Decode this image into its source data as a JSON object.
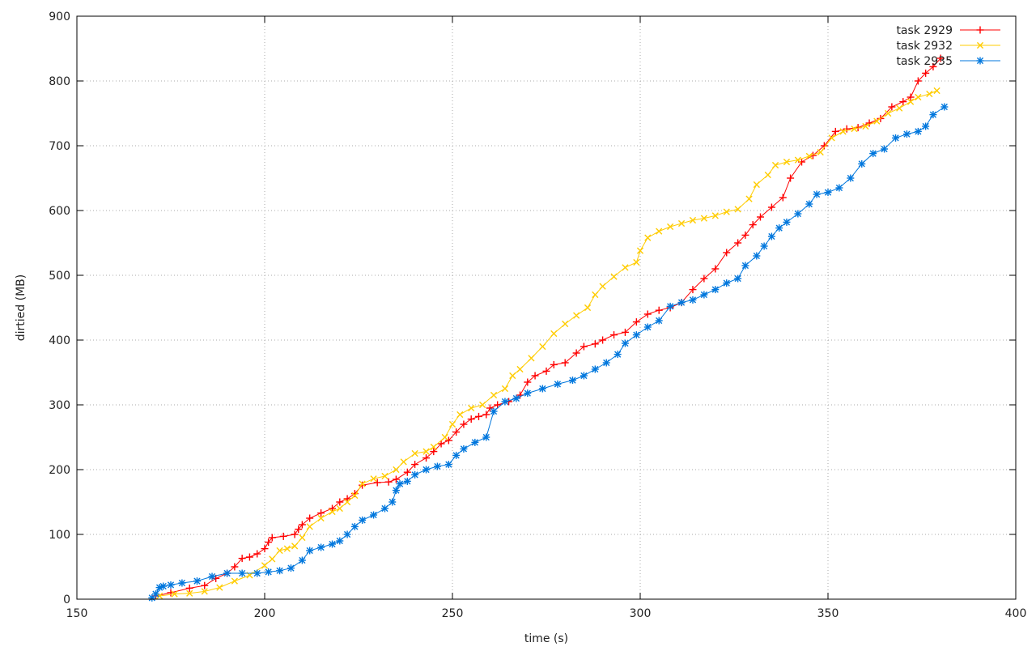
{
  "chart_data": {
    "type": "line",
    "title": "",
    "xlabel": "time (s)",
    "ylabel": "dirtied (MB)",
    "xlim": [
      150,
      400
    ],
    "ylim": [
      0,
      900
    ],
    "xticks": [
      150,
      200,
      250,
      300,
      350,
      400
    ],
    "yticks": [
      0,
      100,
      200,
      300,
      400,
      500,
      600,
      700,
      800,
      900
    ],
    "grid": true,
    "legend_position": "top-right",
    "series": [
      {
        "name": "task 2929",
        "color": "#ff0000",
        "marker": "plus",
        "points": [
          [
            171,
            5
          ],
          [
            175,
            10
          ],
          [
            180,
            17
          ],
          [
            184,
            21
          ],
          [
            187,
            32
          ],
          [
            190,
            40
          ],
          [
            192,
            50
          ],
          [
            194,
            63
          ],
          [
            196,
            65
          ],
          [
            198,
            70
          ],
          [
            200,
            78
          ],
          [
            201,
            88
          ],
          [
            202,
            95
          ],
          [
            205,
            97
          ],
          [
            208,
            100
          ],
          [
            209,
            108
          ],
          [
            210,
            115
          ],
          [
            212,
            125
          ],
          [
            215,
            133
          ],
          [
            218,
            140
          ],
          [
            220,
            150
          ],
          [
            222,
            155
          ],
          [
            224,
            163
          ],
          [
            226,
            176
          ],
          [
            230,
            180
          ],
          [
            233,
            181
          ],
          [
            235,
            185
          ],
          [
            238,
            196
          ],
          [
            240,
            208
          ],
          [
            243,
            218
          ],
          [
            245,
            228
          ],
          [
            247,
            240
          ],
          [
            249,
            245
          ],
          [
            251,
            258
          ],
          [
            253,
            270
          ],
          [
            255,
            278
          ],
          [
            257,
            282
          ],
          [
            259,
            285
          ],
          [
            260,
            295
          ],
          [
            262,
            300
          ],
          [
            265,
            305
          ],
          [
            268,
            315
          ],
          [
            270,
            335
          ],
          [
            272,
            345
          ],
          [
            275,
            352
          ],
          [
            277,
            362
          ],
          [
            280,
            365
          ],
          [
            283,
            380
          ],
          [
            285,
            390
          ],
          [
            288,
            394
          ],
          [
            290,
            400
          ],
          [
            293,
            408
          ],
          [
            296,
            412
          ],
          [
            299,
            428
          ],
          [
            302,
            440
          ],
          [
            305,
            446
          ],
          [
            308,
            450
          ],
          [
            311,
            458
          ],
          [
            314,
            478
          ],
          [
            317,
            495
          ],
          [
            320,
            510
          ],
          [
            323,
            535
          ],
          [
            326,
            550
          ],
          [
            328,
            562
          ],
          [
            330,
            578
          ],
          [
            332,
            590
          ],
          [
            335,
            605
          ],
          [
            338,
            620
          ],
          [
            340,
            650
          ],
          [
            343,
            675
          ],
          [
            346,
            685
          ],
          [
            349,
            700
          ],
          [
            352,
            722
          ],
          [
            355,
            726
          ],
          [
            358,
            728
          ],
          [
            361,
            735
          ],
          [
            364,
            742
          ],
          [
            367,
            760
          ],
          [
            370,
            768
          ],
          [
            372,
            775
          ],
          [
            374,
            800
          ],
          [
            376,
            812
          ],
          [
            378,
            822
          ],
          [
            380,
            835
          ]
        ]
      },
      {
        "name": "task 2932",
        "color": "#ffcc00",
        "marker": "x",
        "points": [
          [
            172,
            5
          ],
          [
            176,
            8
          ],
          [
            180,
            9
          ],
          [
            184,
            12
          ],
          [
            188,
            18
          ],
          [
            192,
            28
          ],
          [
            196,
            37
          ],
          [
            200,
            52
          ],
          [
            202,
            62
          ],
          [
            204,
            75
          ],
          [
            206,
            78
          ],
          [
            208,
            82
          ],
          [
            210,
            95
          ],
          [
            212,
            112
          ],
          [
            215,
            125
          ],
          [
            218,
            135
          ],
          [
            220,
            140
          ],
          [
            222,
            150
          ],
          [
            224,
            160
          ],
          [
            226,
            178
          ],
          [
            229,
            186
          ],
          [
            232,
            190
          ],
          [
            235,
            200
          ],
          [
            237,
            212
          ],
          [
            240,
            225
          ],
          [
            243,
            228
          ],
          [
            245,
            235
          ],
          [
            248,
            250
          ],
          [
            250,
            270
          ],
          [
            252,
            285
          ],
          [
            255,
            295
          ],
          [
            258,
            300
          ],
          [
            261,
            315
          ],
          [
            264,
            325
          ],
          [
            266,
            345
          ],
          [
            268,
            355
          ],
          [
            271,
            372
          ],
          [
            274,
            390
          ],
          [
            277,
            410
          ],
          [
            280,
            425
          ],
          [
            283,
            438
          ],
          [
            286,
            450
          ],
          [
            288,
            470
          ],
          [
            290,
            483
          ],
          [
            293,
            498
          ],
          [
            296,
            512
          ],
          [
            299,
            520
          ],
          [
            300,
            538
          ],
          [
            302,
            558
          ],
          [
            305,
            568
          ],
          [
            308,
            575
          ],
          [
            311,
            580
          ],
          [
            314,
            585
          ],
          [
            317,
            588
          ],
          [
            320,
            592
          ],
          [
            323,
            598
          ],
          [
            326,
            602
          ],
          [
            329,
            618
          ],
          [
            331,
            640
          ],
          [
            334,
            655
          ],
          [
            336,
            670
          ],
          [
            339,
            675
          ],
          [
            342,
            678
          ],
          [
            345,
            684
          ],
          [
            348,
            690
          ],
          [
            351,
            712
          ],
          [
            354,
            722
          ],
          [
            357,
            726
          ],
          [
            360,
            730
          ],
          [
            363,
            738
          ],
          [
            366,
            750
          ],
          [
            369,
            758
          ],
          [
            372,
            768
          ],
          [
            374,
            775
          ],
          [
            377,
            780
          ],
          [
            379,
            785
          ]
        ]
      },
      {
        "name": "task 2935",
        "color": "#0077dd",
        "marker": "star",
        "points": [
          [
            170,
            2
          ],
          [
            171,
            8
          ],
          [
            172,
            18
          ],
          [
            173,
            20
          ],
          [
            175,
            22
          ],
          [
            178,
            25
          ],
          [
            182,
            28
          ],
          [
            186,
            35
          ],
          [
            190,
            40
          ],
          [
            194,
            40
          ],
          [
            198,
            40
          ],
          [
            201,
            42
          ],
          [
            204,
            44
          ],
          [
            207,
            48
          ],
          [
            210,
            60
          ],
          [
            212,
            75
          ],
          [
            215,
            80
          ],
          [
            218,
            85
          ],
          [
            220,
            90
          ],
          [
            222,
            100
          ],
          [
            224,
            112
          ],
          [
            226,
            122
          ],
          [
            229,
            130
          ],
          [
            232,
            140
          ],
          [
            234,
            150
          ],
          [
            235,
            168
          ],
          [
            236,
            178
          ],
          [
            238,
            182
          ],
          [
            240,
            192
          ],
          [
            243,
            200
          ],
          [
            246,
            205
          ],
          [
            249,
            208
          ],
          [
            251,
            222
          ],
          [
            253,
            232
          ],
          [
            256,
            242
          ],
          [
            259,
            250
          ],
          [
            261,
            290
          ],
          [
            264,
            305
          ],
          [
            267,
            310
          ],
          [
            270,
            318
          ],
          [
            274,
            325
          ],
          [
            278,
            332
          ],
          [
            282,
            338
          ],
          [
            285,
            345
          ],
          [
            288,
            355
          ],
          [
            291,
            365
          ],
          [
            294,
            378
          ],
          [
            296,
            395
          ],
          [
            299,
            408
          ],
          [
            302,
            420
          ],
          [
            305,
            430
          ],
          [
            308,
            452
          ],
          [
            311,
            458
          ],
          [
            314,
            462
          ],
          [
            317,
            470
          ],
          [
            320,
            478
          ],
          [
            323,
            488
          ],
          [
            326,
            495
          ],
          [
            328,
            515
          ],
          [
            331,
            530
          ],
          [
            333,
            545
          ],
          [
            335,
            560
          ],
          [
            337,
            573
          ],
          [
            339,
            582
          ],
          [
            342,
            595
          ],
          [
            345,
            610
          ],
          [
            347,
            625
          ],
          [
            350,
            628
          ],
          [
            353,
            635
          ],
          [
            356,
            650
          ],
          [
            359,
            672
          ],
          [
            362,
            688
          ],
          [
            365,
            695
          ],
          [
            368,
            712
          ],
          [
            371,
            718
          ],
          [
            374,
            722
          ],
          [
            376,
            730
          ],
          [
            378,
            748
          ],
          [
            381,
            760
          ]
        ]
      }
    ]
  }
}
